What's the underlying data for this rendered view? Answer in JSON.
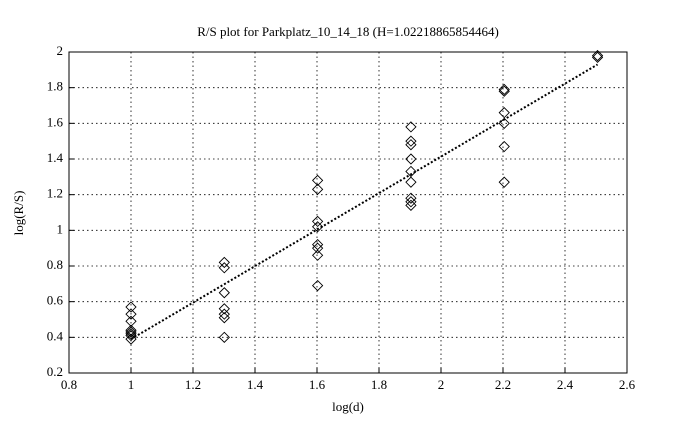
{
  "chart_data": {
    "type": "scatter",
    "title": "R/S plot for Parkplatz_10_14_18 (H=1.02218865854464)",
    "x_label": "log(d)",
    "y_label": "log(R/S)",
    "x": [
      1,
      1,
      1,
      1,
      1,
      1,
      1,
      1,
      1.301,
      1.301,
      1.301,
      1.301,
      1.301,
      1.301,
      1.301,
      1.602,
      1.602,
      1.602,
      1.602,
      1.602,
      1.602,
      1.602,
      1.602,
      1.903,
      1.903,
      1.903,
      1.903,
      1.903,
      1.903,
      1.903,
      1.903,
      1.903,
      2.204,
      2.204,
      2.204,
      2.204,
      2.204,
      2.204,
      2.505,
      2.505
    ],
    "y": [
      0.57,
      0.53,
      0.49,
      0.44,
      0.43,
      0.42,
      0.41,
      0.39,
      0.82,
      0.79,
      0.65,
      0.56,
      0.53,
      0.51,
      0.4,
      1.28,
      1.23,
      1.05,
      1.02,
      0.92,
      0.9,
      0.86,
      0.69,
      1.58,
      1.5,
      1.48,
      1.4,
      1.33,
      1.27,
      1.18,
      1.16,
      1.14,
      1.79,
      1.78,
      1.66,
      1.6,
      1.47,
      1.27,
      1.98,
      1.97
    ],
    "color": "#000000",
    "fit": {
      "x": [
        1,
        2.505
      ],
      "y": [
        0.39,
        1.93
      ]
    },
    "xlim": [
      0.8,
      2.6
    ],
    "xticks": [
      0.8,
      1,
      1.2,
      1.4,
      1.6,
      1.8,
      2,
      2.2,
      2.4,
      2.6
    ],
    "ylim": [
      0.2,
      2
    ],
    "yticks": [
      0.2,
      0.4,
      0.6,
      0.8,
      1,
      1.2,
      1.4,
      1.6,
      1.8,
      2
    ],
    "grid": true
  }
}
